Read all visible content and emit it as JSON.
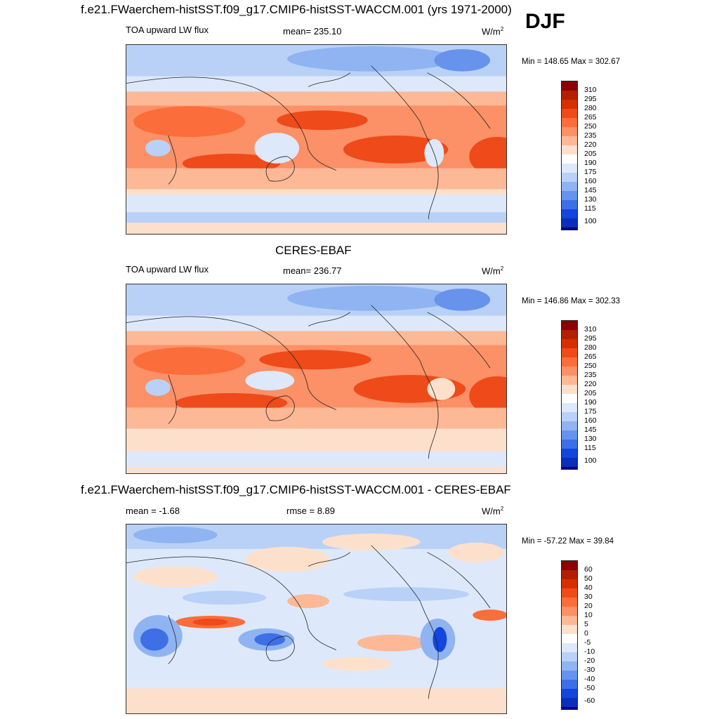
{
  "header": {
    "main_title": "f.e21.FWaerchem-histSST.f09_g17.CMIP6-histSST-WACCM.001 (yrs 1971-2000)",
    "season": "DJF"
  },
  "panels": [
    {
      "id": "model",
      "title": "",
      "left_label": "TOA upward LW flux",
      "center_label": "mean= 235.10",
      "units_base": "W/m",
      "units_exp": "2",
      "minmax": "Min = 148.65 Max = 302.67",
      "colorbar_labels": [
        "310",
        "295",
        "280",
        "265",
        "250",
        "235",
        "220",
        "205",
        "190",
        "175",
        "160",
        "145",
        "130",
        "115",
        "100"
      ]
    },
    {
      "id": "obs",
      "title": "CERES-EBAF",
      "left_label": "TOA upward LW flux",
      "center_label": "mean= 236.77",
      "units_base": "W/m",
      "units_exp": "2",
      "minmax": "Min = 146.86 Max = 302.33",
      "colorbar_labels": [
        "310",
        "295",
        "280",
        "265",
        "250",
        "235",
        "220",
        "205",
        "190",
        "175",
        "160",
        "145",
        "130",
        "115",
        "100"
      ]
    },
    {
      "id": "diff",
      "title": "f.e21.FWaerchem-histSST.f09_g17.CMIP6-histSST-WACCM.001 - CERES-EBAF",
      "left_label": "mean =  -1.68",
      "center_label": "rmse =   8.89",
      "units_base": "W/m",
      "units_exp": "2",
      "minmax": "Min = -57.22 Max =  39.84",
      "colorbar_labels": [
        "60",
        "50",
        "40",
        "30",
        "20",
        "10",
        "5",
        "0",
        "-5",
        "-10",
        "-20",
        "-30",
        "-40",
        "-50",
        "-60"
      ]
    }
  ],
  "colors": {
    "abs_scale": [
      "#8b0000",
      "#b22000",
      "#d63000",
      "#ee4a1a",
      "#fb6d3a",
      "#fc9066",
      "#fdb896",
      "#fde0cc",
      "#ffffff",
      "#dde9fb",
      "#b9d1f7",
      "#90b4f1",
      "#6893ec",
      "#3e6fe6",
      "#1346dd",
      "#0a2fb8",
      "#00008b"
    ],
    "diff_scale": [
      "#8b0000",
      "#b22000",
      "#d63000",
      "#ee4a1a",
      "#fb6d3a",
      "#fc9066",
      "#fdb896",
      "#fde0cc",
      "#ffffff",
      "#dde9fb",
      "#b9d1f7",
      "#90b4f1",
      "#6893ec",
      "#3e6fe6",
      "#1346dd",
      "#0a2fb8",
      "#00008b"
    ],
    "coastline": "#222222"
  }
}
